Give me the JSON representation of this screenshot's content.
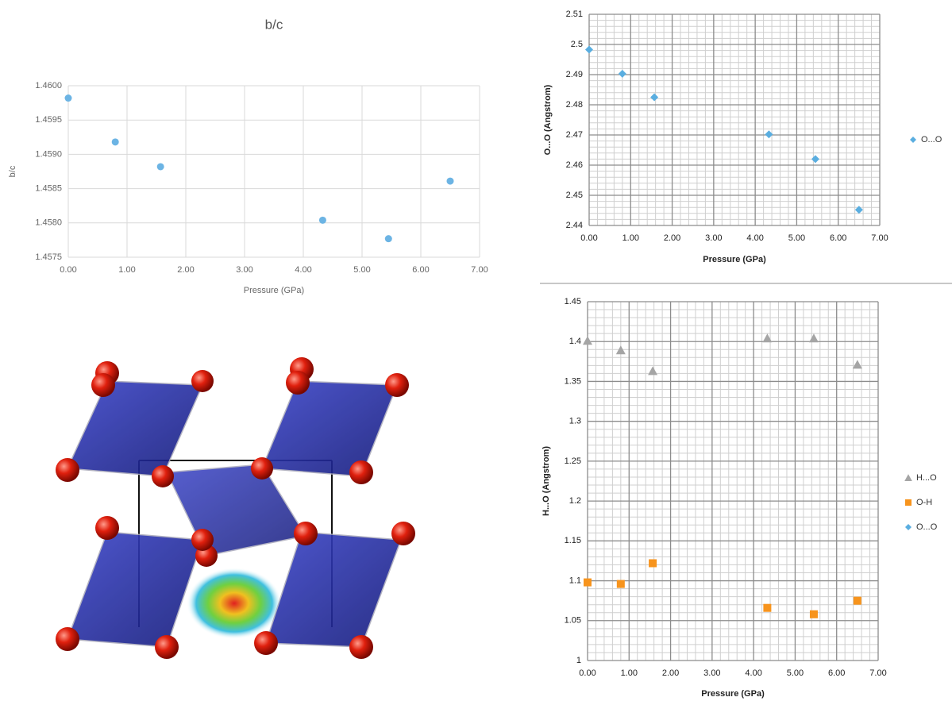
{
  "chart_data": [
    {
      "type": "scatter",
      "title": "b/c",
      "x_label": "Pressure (GPa)",
      "y_label": "b/c",
      "x": [
        0.0,
        0.8,
        1.57,
        4.33,
        5.45,
        6.5
      ],
      "series": [
        {
          "name": null,
          "color": "#6cb4e4",
          "marker": "circle",
          "values": [
            1.45982,
            1.45918,
            1.45882,
            1.45804,
            1.45777,
            1.45861
          ]
        }
      ],
      "xlim": [
        0,
        7
      ],
      "xticks": [
        {
          "value": 0,
          "label": "0.00"
        },
        {
          "value": 1,
          "label": "1.00"
        },
        {
          "value": 2,
          "label": "2.00"
        },
        {
          "value": 3,
          "label": "3.00"
        },
        {
          "value": 4,
          "label": "4.00"
        },
        {
          "value": 5,
          "label": "5.00"
        },
        {
          "value": 6,
          "label": "6.00"
        },
        {
          "value": 7,
          "label": "7.00"
        }
      ],
      "ylim": [
        1.4575,
        1.46
      ],
      "yticks": [
        {
          "value": 1.4575,
          "label": "1.4575"
        },
        {
          "value": 1.458,
          "label": "1.4580"
        },
        {
          "value": 1.4585,
          "label": "1.4585"
        },
        {
          "value": 1.459,
          "label": "1.4590"
        },
        {
          "value": 1.4595,
          "label": "1.4595"
        },
        {
          "value": 1.46,
          "label": "1.4600"
        }
      ],
      "grid": true,
      "minor_grid": 1
    },
    {
      "type": "scatter",
      "x_label": "Pressure (GPa)",
      "y_label": "O...O (Angstrom)",
      "x": [
        0.0,
        0.8,
        1.57,
        4.33,
        5.45,
        6.5
      ],
      "series": [
        {
          "name": "O...O",
          "color": "#5aaee0",
          "marker": "diamond",
          "values": [
            2.4983,
            2.4903,
            2.4825,
            2.4702,
            2.462,
            2.4452
          ]
        }
      ],
      "xlim": [
        0,
        7
      ],
      "xticks": [
        {
          "value": 0,
          "label": "0.00"
        },
        {
          "value": 1,
          "label": "1.00"
        },
        {
          "value": 2,
          "label": "2.00"
        },
        {
          "value": 3,
          "label": "3.00"
        },
        {
          "value": 4,
          "label": "4.00"
        },
        {
          "value": 5,
          "label": "5.00"
        },
        {
          "value": 6,
          "label": "6.00"
        },
        {
          "value": 7,
          "label": "7.00"
        }
      ],
      "ylim": [
        2.44,
        2.51
      ],
      "yticks": [
        2.44,
        2.45,
        2.46,
        2.47,
        2.48,
        2.49,
        2.5,
        2.51
      ],
      "grid": true,
      "minor_grid": 5
    },
    {
      "type": "scatter",
      "x_label": "Pressure (GPa)",
      "y_label": "H...O (Angstrom)",
      "x": [
        0.0,
        0.8,
        1.57,
        4.33,
        5.45,
        6.5
      ],
      "series": [
        {
          "name": "H...O",
          "color": "#a5a5a5",
          "marker": "triangle",
          "values": [
            1.401,
            1.389,
            1.363,
            1.404,
            1.404,
            1.371
          ]
        },
        {
          "name": "O-H",
          "color": "#f7941d",
          "marker": "square",
          "values": [
            1.098,
            1.096,
            1.122,
            1.066,
            1.058,
            1.075
          ]
        },
        {
          "name": "O...O",
          "color": "#5aaee0",
          "marker": "diamond",
          "values": [
            null,
            null,
            null,
            null,
            null,
            null
          ]
        }
      ],
      "xlim": [
        0,
        7
      ],
      "xticks": [
        {
          "value": 0,
          "label": "0.00"
        },
        {
          "value": 1,
          "label": "1.00"
        },
        {
          "value": 2,
          "label": "2.00"
        },
        {
          "value": 3,
          "label": "3.00"
        },
        {
          "value": 4,
          "label": "4.00"
        },
        {
          "value": 5,
          "label": "5.00"
        },
        {
          "value": 6,
          "label": "6.00"
        },
        {
          "value": 7,
          "label": "7.00"
        }
      ],
      "ylim": [
        1,
        1.45
      ],
      "yticks": [
        1,
        1.05,
        1.1,
        1.15,
        1.2,
        1.25,
        1.3,
        1.35,
        1.4,
        1.45
      ],
      "grid": true,
      "minor_grid": 5
    }
  ]
}
